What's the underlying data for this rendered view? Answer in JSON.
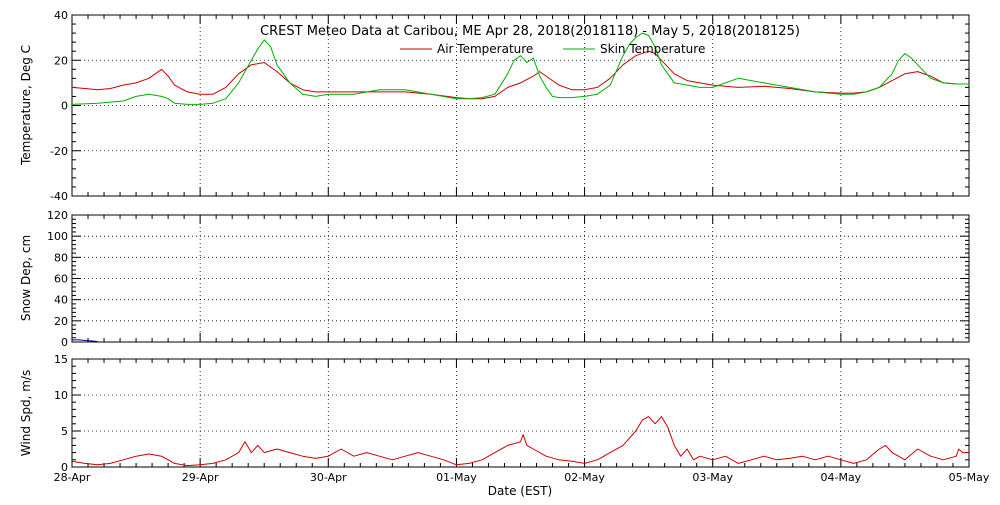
{
  "chart_data": [
    {
      "type": "line",
      "title": "CREST Meteo Data at Caribou, ME   Apr 28, 2018(2018118) - May  5, 2018(2018125)",
      "ylabel": "Temperature, Deg C",
      "xlabel": "",
      "xlim": [
        0,
        7
      ],
      "ylim": [
        -40,
        40
      ],
      "yticks": [
        "-40",
        "-20",
        "0",
        "20",
        "40"
      ],
      "yminor": 5,
      "grid": true,
      "legend_position": "top-center",
      "series": [
        {
          "name": "Air Temperature",
          "color": "#cc0000",
          "x": [
            0,
            0.1,
            0.2,
            0.3,
            0.4,
            0.5,
            0.6,
            0.65,
            0.7,
            0.75,
            0.8,
            0.9,
            1.0,
            1.1,
            1.2,
            1.3,
            1.4,
            1.5,
            1.6,
            1.7,
            1.8,
            1.9,
            2.0,
            2.2,
            2.4,
            2.6,
            2.8,
            3.0,
            3.1,
            3.2,
            3.3,
            3.4,
            3.5,
            3.6,
            3.65,
            3.7,
            3.8,
            3.9,
            4.0,
            4.1,
            4.2,
            4.3,
            4.4,
            4.5,
            4.55,
            4.6,
            4.7,
            4.8,
            4.9,
            5.0,
            5.2,
            5.4,
            5.6,
            5.8,
            6.0,
            6.1,
            6.2,
            6.3,
            6.4,
            6.5,
            6.6,
            6.7,
            6.8,
            6.9,
            7.0
          ],
          "y": [
            8,
            7.5,
            7,
            7.5,
            9,
            10,
            12,
            14,
            16,
            13,
            9,
            6,
            5,
            5,
            8,
            14,
            18,
            19,
            15,
            10,
            7,
            6,
            6,
            6,
            6,
            6,
            5,
            3.5,
            3,
            3,
            4,
            8,
            10,
            13,
            15,
            13,
            9,
            7,
            7,
            8,
            12,
            18,
            22,
            24,
            23,
            20,
            14,
            11,
            10,
            9,
            8,
            8.5,
            7.5,
            6,
            5.5,
            5.5,
            6,
            8,
            11,
            14,
            15,
            13,
            10,
            9.5,
            9.5
          ]
        },
        {
          "name": "Skin Temperature",
          "color": "#00b000",
          "x": [
            0,
            0.2,
            0.4,
            0.5,
            0.6,
            0.7,
            0.75,
            0.8,
            0.9,
            1.0,
            1.1,
            1.2,
            1.3,
            1.4,
            1.45,
            1.5,
            1.55,
            1.6,
            1.7,
            1.8,
            1.9,
            2.0,
            2.2,
            2.4,
            2.6,
            2.8,
            3.0,
            3.1,
            3.2,
            3.3,
            3.4,
            3.45,
            3.5,
            3.55,
            3.6,
            3.65,
            3.7,
            3.75,
            3.8,
            3.9,
            4.0,
            4.1,
            4.2,
            4.3,
            4.35,
            4.4,
            4.45,
            4.5,
            4.55,
            4.6,
            4.7,
            4.8,
            4.9,
            5.0,
            5.2,
            5.4,
            5.6,
            5.8,
            6.0,
            6.1,
            6.2,
            6.3,
            6.4,
            6.45,
            6.5,
            6.55,
            6.6,
            6.7,
            6.8,
            6.9,
            7.0
          ],
          "y": [
            0.5,
            1,
            2,
            4,
            5,
            4,
            3,
            1,
            0.5,
            0.5,
            1,
            3,
            10,
            20,
            25,
            29,
            26,
            18,
            10,
            5,
            4,
            5,
            5,
            7,
            7,
            5,
            3,
            3,
            3.5,
            5,
            14,
            20,
            22,
            19,
            21,
            13,
            8,
            4,
            3.5,
            3.5,
            4,
            5,
            9,
            22,
            27,
            30,
            32,
            31,
            26,
            18,
            10,
            9,
            8,
            8,
            12,
            10,
            8,
            6,
            5,
            5,
            6,
            8,
            14,
            20,
            23,
            21,
            18,
            12,
            10,
            9.5,
            9.5
          ]
        }
      ]
    },
    {
      "type": "line",
      "title": "",
      "ylabel": "Snow Dep, cm",
      "xlabel": "",
      "xlim": [
        0,
        7
      ],
      "ylim": [
        0,
        120
      ],
      "yticks": [
        "0",
        "20",
        "40",
        "60",
        "80",
        "100",
        "120"
      ],
      "yminor": 5,
      "grid": true,
      "series": [
        {
          "name": "",
          "color": "#00008b",
          "x": [
            0,
            0.05,
            0.1,
            0.15,
            0.2
          ],
          "y": [
            2,
            2,
            1.5,
            1,
            0.5
          ]
        }
      ]
    },
    {
      "type": "line",
      "title": "",
      "ylabel": "Wind Spd, m/s",
      "xlabel": "Date (EST)",
      "xlim": [
        0,
        7
      ],
      "ylim": [
        0,
        15
      ],
      "yticks": [
        "0",
        "5",
        "10",
        "15"
      ],
      "yminor": 5,
      "grid": true,
      "x_tick_labels": [
        "28-Apr",
        "29-Apr",
        "30-Apr",
        "01-May",
        "02-May",
        "03-May",
        "04-May",
        "05-May"
      ],
      "series": [
        {
          "name": "",
          "color": "#cc0000",
          "x": [
            0,
            0.1,
            0.2,
            0.3,
            0.4,
            0.5,
            0.6,
            0.7,
            0.8,
            0.9,
            1.0,
            1.1,
            1.2,
            1.3,
            1.35,
            1.4,
            1.45,
            1.5,
            1.6,
            1.7,
            1.8,
            1.9,
            2.0,
            2.1,
            2.2,
            2.3,
            2.4,
            2.5,
            2.6,
            2.7,
            2.8,
            2.9,
            3.0,
            3.1,
            3.2,
            3.3,
            3.4,
            3.5,
            3.52,
            3.55,
            3.6,
            3.7,
            3.8,
            3.9,
            4.0,
            4.1,
            4.2,
            4.3,
            4.4,
            4.45,
            4.5,
            4.55,
            4.6,
            4.65,
            4.7,
            4.75,
            4.8,
            4.85,
            4.9,
            5.0,
            5.1,
            5.2,
            5.3,
            5.4,
            5.5,
            5.6,
            5.7,
            5.8,
            5.9,
            6.0,
            6.1,
            6.2,
            6.3,
            6.35,
            6.4,
            6.5,
            6.6,
            6.7,
            6.8,
            6.9,
            6.92,
            6.95,
            7.0
          ],
          "y": [
            0.8,
            0.5,
            0.3,
            0.5,
            1.0,
            1.5,
            1.8,
            1.5,
            0.5,
            0.2,
            0.3,
            0.5,
            1.0,
            2.0,
            3.5,
            2.0,
            3.0,
            2.0,
            2.5,
            2.0,
            1.5,
            1.2,
            1.5,
            2.5,
            1.5,
            2.0,
            1.5,
            1.0,
            1.5,
            2.0,
            1.5,
            1.0,
            0.3,
            0.5,
            1.0,
            2.0,
            3.0,
            3.5,
            4.5,
            3.0,
            2.5,
            1.5,
            1.0,
            0.8,
            0.5,
            1.0,
            2.0,
            3.0,
            5.0,
            6.5,
            7.0,
            6.0,
            7.0,
            5.5,
            3.0,
            1.5,
            2.5,
            1.0,
            1.5,
            1.0,
            1.5,
            0.5,
            1.0,
            1.5,
            1.0,
            1.2,
            1.5,
            1.0,
            1.5,
            1.0,
            0.5,
            1.0,
            2.5,
            3.0,
            2.0,
            1.0,
            2.5,
            1.5,
            1.0,
            1.5,
            2.5,
            2.0,
            2.0
          ]
        }
      ]
    }
  ]
}
